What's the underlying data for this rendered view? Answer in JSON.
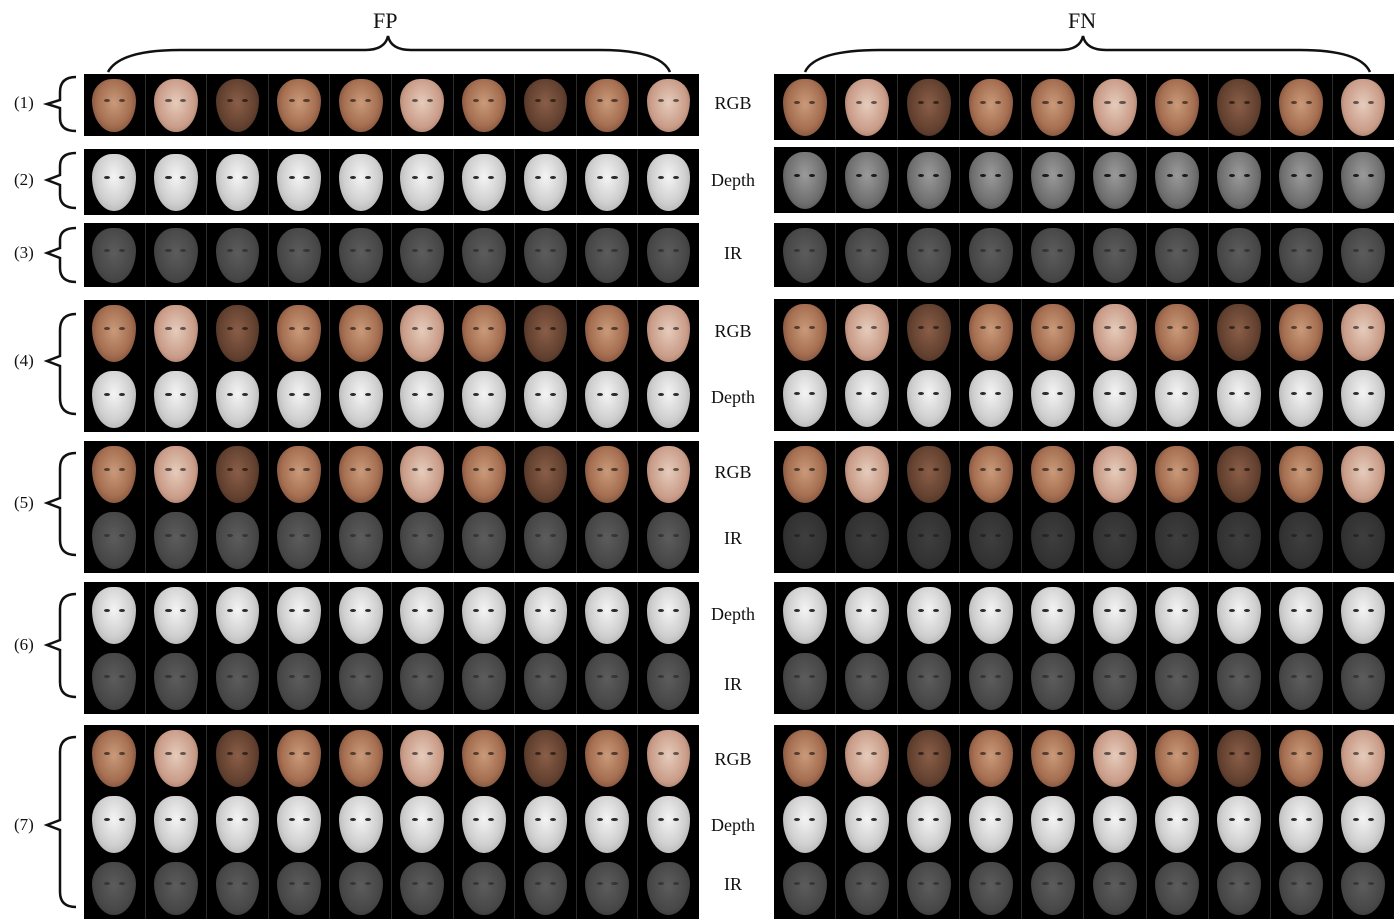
{
  "headers": {
    "fp": "FP",
    "fn": "FN"
  },
  "row_labels": [
    "(1)",
    "(2)",
    "(3)",
    "(4)",
    "(5)",
    "(6)",
    "(7)"
  ],
  "modalities": {
    "rgb": "RGB",
    "depth": "Depth",
    "ir": "IR"
  },
  "faces_per_strip": 10,
  "figure_description": "Grid of cropped face images comparing false positives and false negatives across RGB, Depth and IR modalities"
}
